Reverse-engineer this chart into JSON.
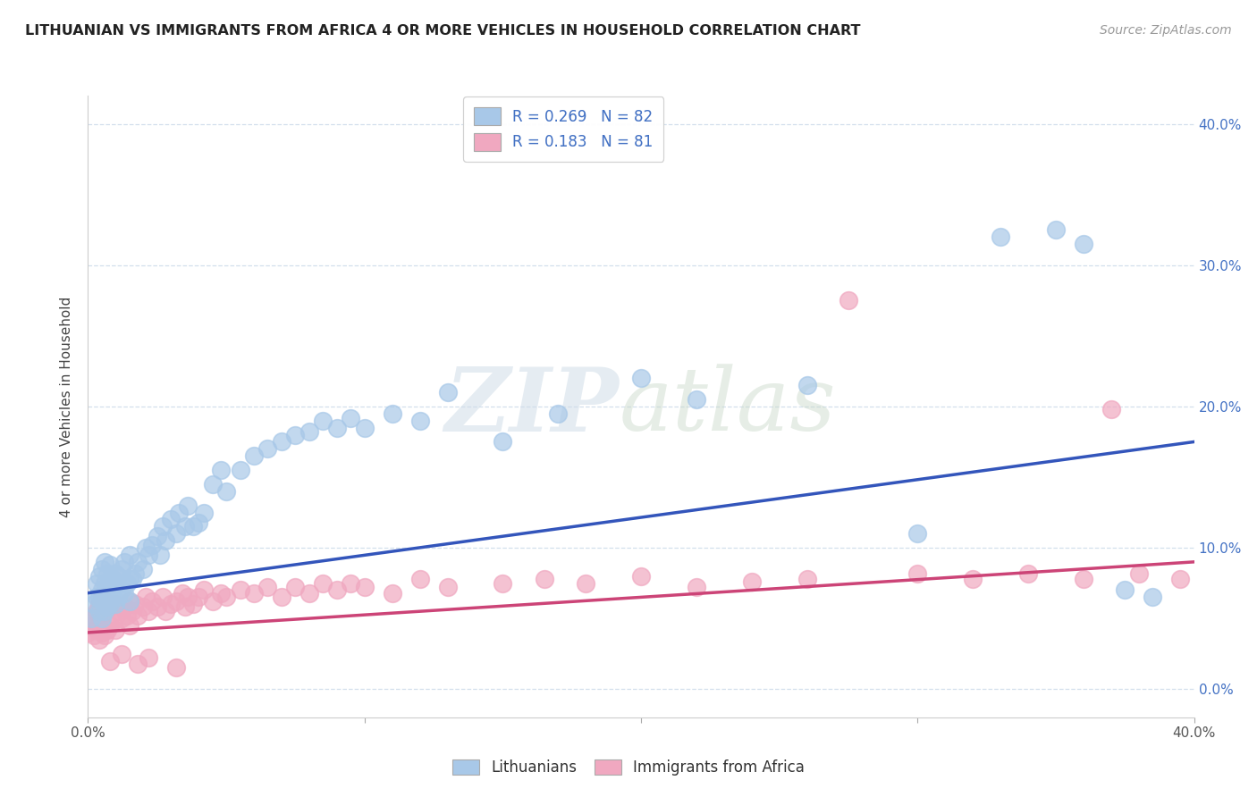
{
  "title": "LITHUANIAN VS IMMIGRANTS FROM AFRICA 4 OR MORE VEHICLES IN HOUSEHOLD CORRELATION CHART",
  "source": "Source: ZipAtlas.com",
  "ylabel": "4 or more Vehicles in Household",
  "ytick_vals": [
    0.0,
    0.1,
    0.2,
    0.3,
    0.4
  ],
  "ytick_labels": [
    "0.0%",
    "10.0%",
    "20.0%",
    "30.0%",
    "40.0%"
  ],
  "xlim": [
    0.0,
    0.4
  ],
  "ylim": [
    -0.02,
    0.42
  ],
  "legend_line1": "R = 0.269   N = 82",
  "legend_line2": "R = 0.183   N = 81",
  "legend_label_blue": "Lithuanians",
  "legend_label_pink": "Immigrants from Africa",
  "blue_color": "#a8c8e8",
  "pink_color": "#f0a8c0",
  "blue_line_color": "#3355bb",
  "pink_line_color": "#cc4477",
  "watermark_zip": "ZIP",
  "watermark_atlas": "atlas",
  "blue_trend_x0": 0.0,
  "blue_trend_y0": 0.068,
  "blue_trend_x1": 0.4,
  "blue_trend_y1": 0.175,
  "pink_trend_x0": 0.0,
  "pink_trend_y0": 0.04,
  "pink_trend_x1": 0.4,
  "pink_trend_y1": 0.09,
  "blue_x": [
    0.001,
    0.002,
    0.003,
    0.003,
    0.004,
    0.004,
    0.004,
    0.005,
    0.005,
    0.005,
    0.005,
    0.006,
    0.006,
    0.006,
    0.006,
    0.007,
    0.007,
    0.007,
    0.008,
    0.008,
    0.008,
    0.008,
    0.009,
    0.009,
    0.01,
    0.01,
    0.011,
    0.011,
    0.012,
    0.012,
    0.013,
    0.013,
    0.014,
    0.015,
    0.015,
    0.015,
    0.016,
    0.017,
    0.018,
    0.02,
    0.021,
    0.022,
    0.023,
    0.025,
    0.026,
    0.027,
    0.028,
    0.03,
    0.032,
    0.033,
    0.035,
    0.036,
    0.038,
    0.04,
    0.042,
    0.045,
    0.048,
    0.05,
    0.055,
    0.06,
    0.065,
    0.07,
    0.075,
    0.08,
    0.085,
    0.09,
    0.095,
    0.1,
    0.11,
    0.12,
    0.13,
    0.15,
    0.17,
    0.2,
    0.22,
    0.26,
    0.3,
    0.33,
    0.35,
    0.36,
    0.375,
    0.385
  ],
  "blue_y": [
    0.05,
    0.06,
    0.065,
    0.075,
    0.055,
    0.065,
    0.08,
    0.05,
    0.062,
    0.07,
    0.085,
    0.055,
    0.065,
    0.075,
    0.09,
    0.058,
    0.07,
    0.082,
    0.06,
    0.068,
    0.078,
    0.088,
    0.065,
    0.078,
    0.06,
    0.082,
    0.065,
    0.08,
    0.07,
    0.085,
    0.068,
    0.09,
    0.075,
    0.062,
    0.078,
    0.095,
    0.078,
    0.082,
    0.09,
    0.085,
    0.1,
    0.095,
    0.102,
    0.108,
    0.095,
    0.115,
    0.105,
    0.12,
    0.11,
    0.125,
    0.115,
    0.13,
    0.115,
    0.118,
    0.125,
    0.145,
    0.155,
    0.14,
    0.155,
    0.165,
    0.17,
    0.175,
    0.18,
    0.182,
    0.19,
    0.185,
    0.192,
    0.185,
    0.195,
    0.19,
    0.21,
    0.175,
    0.195,
    0.22,
    0.205,
    0.215,
    0.11,
    0.32,
    0.325,
    0.315,
    0.07,
    0.065
  ],
  "pink_x": [
    0.0,
    0.001,
    0.002,
    0.002,
    0.003,
    0.003,
    0.004,
    0.004,
    0.004,
    0.005,
    0.005,
    0.005,
    0.006,
    0.006,
    0.007,
    0.007,
    0.008,
    0.008,
    0.009,
    0.01,
    0.01,
    0.011,
    0.012,
    0.013,
    0.014,
    0.015,
    0.015,
    0.016,
    0.017,
    0.018,
    0.02,
    0.021,
    0.022,
    0.023,
    0.025,
    0.027,
    0.028,
    0.03,
    0.032,
    0.034,
    0.035,
    0.036,
    0.038,
    0.04,
    0.042,
    0.045,
    0.048,
    0.05,
    0.055,
    0.06,
    0.065,
    0.07,
    0.075,
    0.08,
    0.085,
    0.09,
    0.095,
    0.1,
    0.11,
    0.12,
    0.13,
    0.15,
    0.165,
    0.18,
    0.2,
    0.22,
    0.24,
    0.26,
    0.275,
    0.3,
    0.32,
    0.34,
    0.36,
    0.37,
    0.38,
    0.395,
    0.008,
    0.012,
    0.018,
    0.022,
    0.032
  ],
  "pink_y": [
    0.04,
    0.045,
    0.038,
    0.052,
    0.042,
    0.055,
    0.035,
    0.048,
    0.06,
    0.04,
    0.052,
    0.065,
    0.038,
    0.055,
    0.042,
    0.058,
    0.045,
    0.06,
    0.048,
    0.042,
    0.06,
    0.055,
    0.05,
    0.058,
    0.052,
    0.045,
    0.062,
    0.055,
    0.06,
    0.052,
    0.058,
    0.065,
    0.055,
    0.062,
    0.058,
    0.065,
    0.055,
    0.06,
    0.062,
    0.068,
    0.058,
    0.065,
    0.06,
    0.065,
    0.07,
    0.062,
    0.068,
    0.065,
    0.07,
    0.068,
    0.072,
    0.065,
    0.072,
    0.068,
    0.075,
    0.07,
    0.075,
    0.072,
    0.068,
    0.078,
    0.072,
    0.075,
    0.078,
    0.075,
    0.08,
    0.072,
    0.076,
    0.078,
    0.275,
    0.082,
    0.078,
    0.082,
    0.078,
    0.198,
    0.082,
    0.078,
    0.02,
    0.025,
    0.018,
    0.022,
    0.015
  ]
}
